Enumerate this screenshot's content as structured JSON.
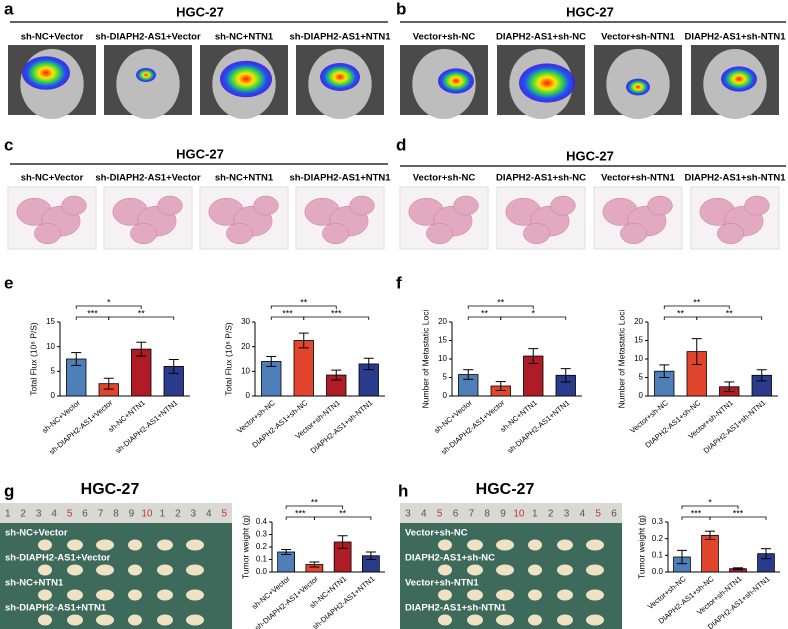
{
  "panels": [
    {
      "label": "a",
      "title": "HGC-27",
      "captions": [
        "sh-NC+Vector",
        "sh-DIAPH2-AS1+Vector",
        "sh-NC+NTN1",
        "sh-DIAPH2-AS1+NTN1"
      ]
    },
    {
      "label": "b",
      "title": "HGC-27",
      "captions": [
        "Vector+sh-NC",
        "DIAPH2-AS1+sh-NC",
        "Vector+sh-NTN1",
        "DIAPH2-AS1+sh-NTN1"
      ]
    },
    {
      "label": "c",
      "title": "HGC-27",
      "captions": [
        "sh-NC+Vector",
        "sh-DIAPH2-AS1+Vector",
        "sh-NC+NTN1",
        "sh-DIAPH2-AS1+NTN1"
      ]
    },
    {
      "label": "d",
      "title": "HGC-27",
      "captions": [
        "Vector+sh-NC",
        "DIAPH2-AS1+sh-NC",
        "Vector+sh-NTN1",
        "DIAPH2-AS1+sh-NTN1"
      ]
    },
    {
      "label": "e"
    },
    {
      "label": "f"
    },
    {
      "label": "g",
      "title": "HGC-27",
      "ruler": [
        "1",
        "2",
        "3",
        "4",
        "5",
        "6",
        "7",
        "8",
        "9",
        "10",
        "1",
        "2",
        "3",
        "4",
        "5"
      ],
      "captions": [
        "sh-NC+Vector",
        "sh-DIAPH2-AS1+Vector",
        "sh-NC+NTN1",
        "sh-DIAPH2-AS1+NTN1"
      ]
    },
    {
      "label": "h",
      "title": "HGC-27",
      "ruler": [
        "3",
        "4",
        "5",
        "6",
        "7",
        "8",
        "9",
        "10",
        "1",
        "2",
        "3",
        "4",
        "5",
        "6"
      ],
      "captions": [
        "Vector+sh-NC",
        "DIAPH2-AS1+sh-NC",
        "Vector+sh-NTN1",
        "DIAPH2-AS1+sh-NTN1"
      ]
    }
  ],
  "chart_data": [
    {
      "type": "bar",
      "ylabel": "Total Flux (10⁸ P/S)",
      "categories": [
        "sh-NC+Vector",
        "sh-DIAPH2-AS1+Vector",
        "sh-NC+NTN1",
        "sh-DIAPH2-AS1+NTN1"
      ],
      "values": [
        7.5,
        2.5,
        9.5,
        6
      ],
      "errors": [
        1.3,
        1.1,
        1.4,
        1.4
      ],
      "colors": [
        "#4f7fb8",
        "#e2452d",
        "#b01c25",
        "#2a3b8b"
      ],
      "ylim": [
        0,
        15
      ],
      "yticks": [
        0,
        5,
        10,
        15
      ],
      "significance": [
        "*",
        "***",
        "**"
      ]
    },
    {
      "type": "bar",
      "ylabel": "Total Flux (10⁸ P/S)",
      "categories": [
        "Vector+sh-NC",
        "DIAPH2-AS1+sh-NC",
        "Vector+sh-NTN1",
        "DIAPH2-AS1+sh-NTN1"
      ],
      "values": [
        14,
        22.5,
        8.5,
        13
      ],
      "errors": [
        2,
        3,
        2,
        2.3
      ],
      "colors": [
        "#4f7fb8",
        "#e2452d",
        "#b01c25",
        "#2a3b8b"
      ],
      "ylim": [
        0,
        30
      ],
      "yticks": [
        0,
        10,
        20,
        30
      ],
      "significance": [
        "**",
        "***",
        "***"
      ]
    },
    {
      "type": "bar",
      "ylabel": "Number of Metastatic Loci",
      "categories": [
        "sh-NC+Vector",
        "sh-DIAPH2-AS1+Vector",
        "sh-NC+NTN1",
        "sh-DIAPH2-AS1+NTN1"
      ],
      "values": [
        5.8,
        2.7,
        10.8,
        5.6
      ],
      "errors": [
        1.3,
        1.2,
        2,
        1.8
      ],
      "colors": [
        "#4f7fb8",
        "#e2452d",
        "#b01c25",
        "#2a3b8b"
      ],
      "ylim": [
        0,
        20
      ],
      "yticks": [
        0,
        5,
        10,
        15,
        20
      ],
      "significance": [
        "**",
        "**",
        "*"
      ]
    },
    {
      "type": "bar",
      "ylabel": "Number of Metastatic Loci",
      "categories": [
        "Vector+sh-NC",
        "DIAPH2-AS1+sh-NC",
        "Vector+sh-NTN1",
        "DIAPH2-AS1+sh-NTN1"
      ],
      "values": [
        6.7,
        12,
        2.5,
        5.6
      ],
      "errors": [
        1.7,
        3.5,
        1.3,
        1.5
      ],
      "colors": [
        "#4f7fb8",
        "#e2452d",
        "#b01c25",
        "#2a3b8b"
      ],
      "ylim": [
        0,
        20
      ],
      "yticks": [
        0,
        5,
        10,
        15,
        20
      ],
      "significance": [
        "**",
        "**",
        "**"
      ]
    },
    {
      "type": "bar",
      "ylabel": "Tumor weight (g)",
      "categories": [
        "sh-NC+Vector",
        "sh-DIAPH2-AS1+Vector",
        "sh-NC+NTN1",
        "sh-DIAPH2-AS1+NTN1"
      ],
      "values": [
        0.16,
        0.06,
        0.24,
        0.13
      ],
      "errors": [
        0.02,
        0.02,
        0.05,
        0.03
      ],
      "colors": [
        "#4f7fb8",
        "#e2452d",
        "#b01c25",
        "#2a3b8b"
      ],
      "ylim": [
        0,
        0.4
      ],
      "yticks": [
        {
          "value": 0,
          "label": "0.0"
        },
        0.1,
        0.2,
        0.3,
        0.4
      ],
      "significance": [
        "**",
        "***",
        "**"
      ]
    },
    {
      "type": "bar",
      "ylabel": "Tumor weight (g)",
      "categories": [
        "Vector+sh-NC",
        "DIAPH2-AS1+sh-NC",
        "Vector+sh-NTN1",
        "DIAPH2-AS1+sh-NTN1"
      ],
      "values": [
        0.09,
        0.22,
        0.02,
        0.11
      ],
      "errors": [
        0.04,
        0.025,
        0.005,
        0.03
      ],
      "colors": [
        "#4f7fb8",
        "#e2452d",
        "#b01c25",
        "#2a3b8b"
      ],
      "ylim": [
        0,
        0.3
      ],
      "yticks": [
        {
          "value": 0,
          "label": "0.0"
        },
        0.1,
        0.2,
        0.3
      ],
      "significance": [
        "*",
        "***",
        "***"
      ]
    }
  ]
}
